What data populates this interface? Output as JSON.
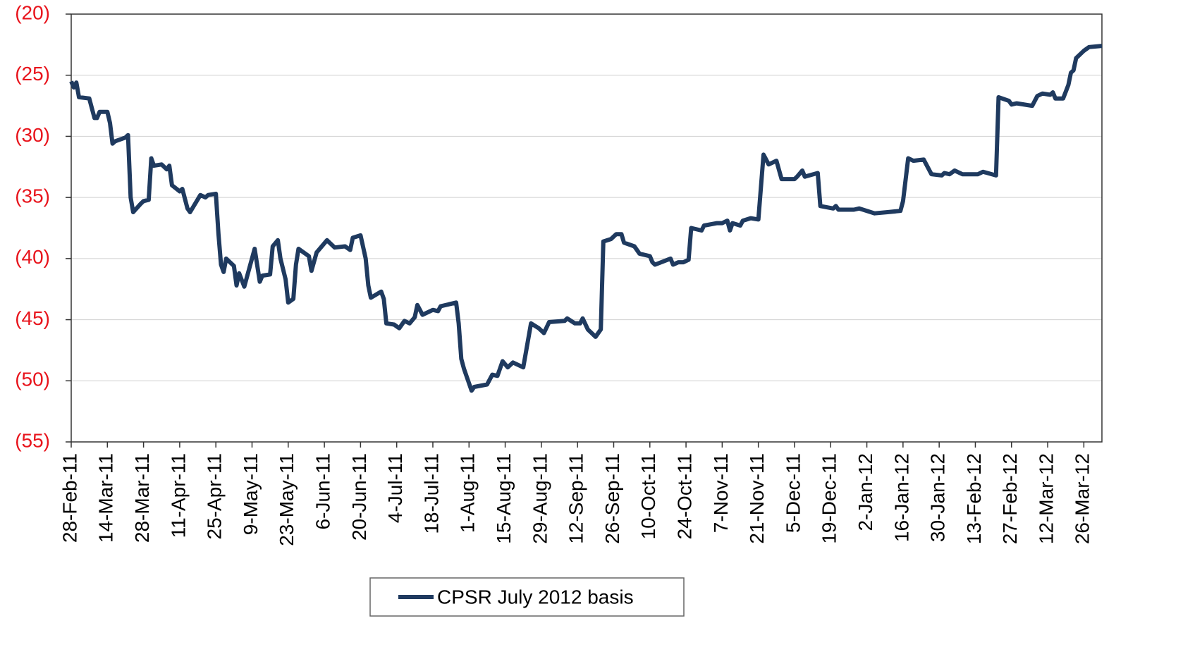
{
  "chart_data": {
    "type": "line",
    "xlim": [
      "2011-02-28",
      "2012-04-02"
    ],
    "xticks": [
      {
        "value": "2011-02-28",
        "label": "28-Feb-11"
      },
      {
        "value": "2011-03-14",
        "label": "14-Mar-11"
      },
      {
        "value": "2011-03-28",
        "label": "28-Mar-11"
      },
      {
        "value": "2011-04-11",
        "label": "11-Apr-11"
      },
      {
        "value": "2011-04-25",
        "label": "25-Apr-11"
      },
      {
        "value": "2011-05-09",
        "label": "9-May-11"
      },
      {
        "value": "2011-05-23",
        "label": "23-May-11"
      },
      {
        "value": "2011-06-06",
        "label": "6-Jun-11"
      },
      {
        "value": "2011-06-20",
        "label": "20-Jun-11"
      },
      {
        "value": "2011-07-04",
        "label": "4-Jul-11"
      },
      {
        "value": "2011-07-18",
        "label": "18-Jul-11"
      },
      {
        "value": "2011-08-01",
        "label": "1-Aug-11"
      },
      {
        "value": "2011-08-15",
        "label": "15-Aug-11"
      },
      {
        "value": "2011-08-29",
        "label": "29-Aug-11"
      },
      {
        "value": "2011-09-12",
        "label": "12-Sep-11"
      },
      {
        "value": "2011-09-26",
        "label": "26-Sep-11"
      },
      {
        "value": "2011-10-10",
        "label": "10-Oct-11"
      },
      {
        "value": "2011-10-24",
        "label": "24-Oct-11"
      },
      {
        "value": "2011-11-07",
        "label": "7-Nov-11"
      },
      {
        "value": "2011-11-21",
        "label": "21-Nov-11"
      },
      {
        "value": "2011-12-05",
        "label": "5-Dec-11"
      },
      {
        "value": "2011-12-19",
        "label": "19-Dec-11"
      },
      {
        "value": "2012-01-02",
        "label": "2-Jan-12"
      },
      {
        "value": "2012-01-16",
        "label": "16-Jan-12"
      },
      {
        "value": "2012-01-30",
        "label": "30-Jan-12"
      },
      {
        "value": "2012-02-13",
        "label": "13-Feb-12"
      },
      {
        "value": "2012-02-27",
        "label": "27-Feb-12"
      },
      {
        "value": "2012-03-12",
        "label": "12-Mar-12"
      },
      {
        "value": "2012-03-26",
        "label": "26-Mar-12"
      }
    ],
    "ylim": [
      -55,
      -20
    ],
    "yticks": [
      {
        "value": -20,
        "label": "(20)"
      },
      {
        "value": -25,
        "label": "(25)"
      },
      {
        "value": -30,
        "label": "(30)"
      },
      {
        "value": -35,
        "label": "(35)"
      },
      {
        "value": -40,
        "label": "(40)"
      },
      {
        "value": -45,
        "label": "(45)"
      },
      {
        "value": -50,
        "label": "(50)"
      },
      {
        "value": -55,
        "label": "(55)"
      }
    ],
    "grid": true,
    "legend": "bottom",
    "x": [
      "2011-02-28",
      "2011-03-01",
      "2011-03-02",
      "2011-03-03",
      "2011-03-07",
      "2011-03-09",
      "2011-03-10",
      "2011-03-11",
      "2011-03-14",
      "2011-03-15",
      "2011-03-16",
      "2011-03-17",
      "2011-03-21",
      "2011-03-22",
      "2011-03-23",
      "2011-03-24",
      "2011-03-27",
      "2011-03-28",
      "2011-03-30",
      "2011-03-31",
      "2011-04-01",
      "2011-04-04",
      "2011-04-06",
      "2011-04-07",
      "2011-04-08",
      "2011-04-11",
      "2011-04-12",
      "2011-04-14",
      "2011-04-15",
      "2011-04-19",
      "2011-04-21",
      "2011-04-22",
      "2011-04-25",
      "2011-04-26",
      "2011-04-27",
      "2011-04-28",
      "2011-04-29",
      "2011-05-02",
      "2011-05-03",
      "2011-05-04",
      "2011-05-06",
      "2011-05-10",
      "2011-05-12",
      "2011-05-13",
      "2011-05-16",
      "2011-05-17",
      "2011-05-19",
      "2011-05-20",
      "2011-05-22",
      "2011-05-23",
      "2011-05-25",
      "2011-05-26",
      "2011-05-27",
      "2011-05-31",
      "2011-06-01",
      "2011-06-03",
      "2011-06-07",
      "2011-06-10",
      "2011-06-14",
      "2011-06-16",
      "2011-06-17",
      "2011-06-20",
      "2011-06-22",
      "2011-06-23",
      "2011-06-24",
      "2011-06-28",
      "2011-06-29",
      "2011-06-30",
      "2011-07-03",
      "2011-07-05",
      "2011-07-07",
      "2011-07-09",
      "2011-07-11",
      "2011-07-12",
      "2011-07-14",
      "2011-07-18",
      "2011-07-20",
      "2011-07-21",
      "2011-07-27",
      "2011-07-28",
      "2011-07-29",
      "2011-07-30",
      "2011-07-31",
      "2011-08-02",
      "2011-08-03",
      "2011-08-08",
      "2011-08-10",
      "2011-08-12",
      "2011-08-14",
      "2011-08-16",
      "2011-08-18",
      "2011-08-22",
      "2011-08-25",
      "2011-08-28",
      "2011-08-30",
      "2011-09-01",
      "2011-09-07",
      "2011-09-08",
      "2011-09-11",
      "2011-09-13",
      "2011-09-14",
      "2011-09-16",
      "2011-09-17",
      "2011-09-19",
      "2011-09-21",
      "2011-09-22",
      "2011-09-25",
      "2011-09-27",
      "2011-09-29",
      "2011-09-30",
      "2011-10-04",
      "2011-10-06",
      "2011-10-10",
      "2011-10-11",
      "2011-10-12",
      "2011-10-18",
      "2011-10-19",
      "2011-10-21",
      "2011-10-23",
      "2011-10-25",
      "2011-10-26",
      "2011-10-30",
      "2011-10-31",
      "2011-11-05",
      "2011-11-07",
      "2011-11-09",
      "2011-11-10",
      "2011-11-11",
      "2011-11-14",
      "2011-11-15",
      "2011-11-18",
      "2011-11-21",
      "2011-11-23",
      "2011-11-25",
      "2011-11-28",
      "2011-11-30",
      "2011-12-05",
      "2011-12-06",
      "2011-12-08",
      "2011-12-09",
      "2011-12-14",
      "2011-12-15",
      "2011-12-20",
      "2011-12-21",
      "2011-12-22",
      "2011-12-28",
      "2011-12-30",
      "2012-01-05",
      "2012-01-10",
      "2012-01-15",
      "2012-01-16",
      "2012-01-18",
      "2012-01-20",
      "2012-01-24",
      "2012-01-27",
      "2012-01-31",
      "2012-02-01",
      "2012-02-03",
      "2012-02-05",
      "2012-02-08",
      "2012-02-14",
      "2012-02-16",
      "2012-02-21",
      "2012-02-22",
      "2012-02-26",
      "2012-02-27",
      "2012-02-29",
      "2012-03-06",
      "2012-03-08",
      "2012-03-10",
      "2012-03-13",
      "2012-03-14",
      "2012-03-15",
      "2012-03-18",
      "2012-03-20",
      "2012-03-21",
      "2012-03-22",
      "2012-03-23",
      "2012-03-26",
      "2012-03-28",
      "2012-04-02"
    ],
    "series": [
      {
        "name": "CPSR July 2012 basis",
        "color": "#1f3a5f",
        "values": [
          -25.5,
          -26,
          -25.6,
          -26.8,
          -26.9,
          -28.5,
          -28.5,
          -28,
          -28,
          -28.9,
          -30.6,
          -30.4,
          -30.1,
          -29.9,
          -35,
          -36.2,
          -35.5,
          -35.3,
          -35.2,
          -31.8,
          -32.4,
          -32.3,
          -32.7,
          -32.4,
          -34,
          -34.5,
          -34.3,
          -35.9,
          -36.2,
          -34.8,
          -35,
          -34.8,
          -34.7,
          -38,
          -40.5,
          -41.1,
          -40,
          -40.6,
          -42.2,
          -41.2,
          -42.3,
          -39.2,
          -41.9,
          -41.4,
          -41.3,
          -39,
          -38.5,
          -40,
          -41.7,
          -43.6,
          -43.3,
          -40.5,
          -39.2,
          -39.8,
          -41,
          -39.5,
          -38.5,
          -39.1,
          -39,
          -39.3,
          -38.3,
          -38.1,
          -40,
          -42.2,
          -43.2,
          -42.7,
          -43.3,
          -45.3,
          -45.4,
          -45.7,
          -45.1,
          -45.3,
          -44.8,
          -43.8,
          -44.6,
          -44.2,
          -44.3,
          -43.9,
          -43.6,
          -45.3,
          -48.2,
          -49,
          -49.6,
          -50.8,
          -50.5,
          -50.3,
          -49.5,
          -49.6,
          -48.4,
          -48.9,
          -48.5,
          -48.9,
          -45.3,
          -45.7,
          -46.1,
          -45.2,
          -45.1,
          -44.9,
          -45.3,
          -45.3,
          -44.9,
          -45.8,
          -46,
          -46.4,
          -45.8,
          -38.6,
          -38.4,
          -38,
          -38,
          -38.7,
          -39,
          -39.6,
          -39.8,
          -40.3,
          -40.5,
          -40,
          -40.5,
          -40.3,
          -40.3,
          -40.1,
          -37.5,
          -37.7,
          -37.3,
          -37.1,
          -37.1,
          -36.9,
          -37.7,
          -37.1,
          -37.3,
          -36.9,
          -36.7,
          -36.8,
          -31.5,
          -32.3,
          -32,
          -33.5,
          -33.5,
          -33.3,
          -32.8,
          -33.3,
          -33,
          -35.7,
          -35.9,
          -35.7,
          -36,
          -36,
          -35.9,
          -36.3,
          -36.2,
          -36.1,
          -35.3,
          -31.8,
          -32,
          -31.9,
          -33.1,
          -33.2,
          -33,
          -33.1,
          -32.8,
          -33.1,
          -33.1,
          -32.9,
          -33.2,
          -26.8,
          -27.1,
          -27.4,
          -27.3,
          -27.5,
          -26.7,
          -26.5,
          -26.6,
          -26.4,
          -26.9,
          -26.9,
          -25.8,
          -24.8,
          -24.6,
          -23.6,
          -23,
          -22.7,
          -22.6
        ]
      }
    ]
  }
}
